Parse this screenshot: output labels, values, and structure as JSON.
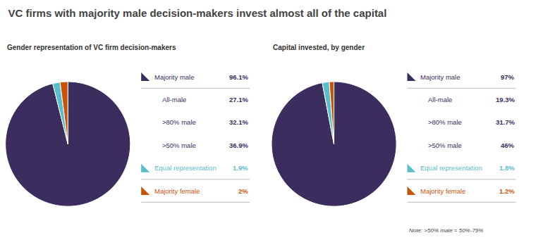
{
  "title": "VC firms with majority male decision-makers invest almost all of the capital",
  "chart_data": [
    {
      "type": "pie",
      "subtitle": "Gender representation of VC firm decision-makers",
      "categories": [
        "Majority male",
        "Equal representation",
        "Majority female"
      ],
      "values": [
        96.1,
        1.9,
        2.0
      ],
      "value_labels": [
        "96.1%",
        "1.9%",
        "2%"
      ],
      "colors": [
        "#3b2d5e",
        "#5bbccc",
        "#c8540a"
      ],
      "legend": "right",
      "annotations": [
        {
          "text": "All-male",
          "value": 27.1,
          "label": "27.1%",
          "parent": "Majority male"
        },
        {
          "text": ">80% male",
          "value": 32.1,
          "label": "32.1%",
          "parent": "Majority male"
        },
        {
          "text": ">50% male",
          "value": 36.9,
          "label": "36.9%",
          "parent": "Majority male"
        }
      ]
    },
    {
      "type": "pie",
      "subtitle": "Capital invested, by gender",
      "categories": [
        "Majority male",
        "Equal representation",
        "Majority female"
      ],
      "values": [
        97.0,
        1.8,
        1.2
      ],
      "value_labels": [
        "97%",
        "1.8%",
        "1.2%"
      ],
      "colors": [
        "#3b2d5e",
        "#5bbccc",
        "#c8540a"
      ],
      "legend": "right",
      "annotations": [
        {
          "text": "All-male",
          "value": 19.3,
          "label": "19.3%",
          "parent": "Majority male"
        },
        {
          "text": ">80% male",
          "value": 31.7,
          "label": "31.7%",
          "parent": "Majority male"
        },
        {
          "text": ">50% male",
          "value": 46,
          "label": "46%",
          "parent": "Majority male"
        },
        {
          "text": "Note: >50% male = 50%-79%"
        }
      ]
    }
  ]
}
